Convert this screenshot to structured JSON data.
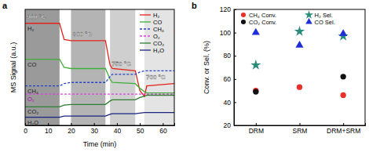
{
  "chart_data": [
    {
      "type": "line",
      "title": "a",
      "x_label": "Time (min)",
      "y_label": "MS Signal (a.u.)",
      "x": [
        0,
        15,
        17,
        20,
        35,
        37,
        38,
        48,
        50,
        52,
        53,
        65
      ],
      "series": [
        {
          "name": "H₂",
          "color": "#e3231b",
          "line_style": "solid",
          "values": [
            8.8,
            8.8,
            7.4,
            7.3,
            7.3,
            5.2,
            4.9,
            4.7,
            3.0,
            2.5,
            3.4,
            3.6
          ]
        },
        {
          "name": "CO",
          "color": "#3fae3a",
          "line_style": "solid",
          "values": [
            5.7,
            5.7,
            5.0,
            4.9,
            4.9,
            4.0,
            3.7,
            3.6,
            3.2,
            2.9,
            2.8,
            2.8
          ]
        },
        {
          "name": "CH₄",
          "color": "#2541c9",
          "line_style": "dashed",
          "values": [
            3.4,
            3.4,
            3.6,
            3.7,
            3.7,
            4.2,
            4.4,
            4.4,
            4.6,
            4.7,
            4.7,
            4.7
          ]
        },
        {
          "name": "O₂",
          "color": "#e040e0",
          "line_style": "dashed",
          "values": [
            2.7,
            2.7,
            2.7,
            2.7,
            2.7,
            2.7,
            2.7,
            2.7,
            2.7,
            2.7,
            2.7,
            2.7
          ]
        },
        {
          "name": "CO₂",
          "color": "#2e7d32",
          "line_style": "solid",
          "values": [
            1.6,
            1.6,
            1.75,
            1.8,
            1.8,
            2.1,
            2.2,
            2.2,
            2.4,
            2.5,
            2.6,
            2.6
          ]
        },
        {
          "name": "H₂O",
          "color": "#1a237e",
          "line_style": "solid",
          "values": [
            0.7,
            0.7,
            0.8,
            0.8,
            0.8,
            0.95,
            1.0,
            1.0,
            1.05,
            1.1,
            1.1,
            1.1
          ]
        }
      ],
      "regions": [
        {
          "start": 0,
          "end": 15,
          "label": "900 °C"
        },
        {
          "start": 20,
          "end": 35,
          "label": "800 °C"
        },
        {
          "start": 37,
          "end": 48,
          "label": "750 °C"
        },
        {
          "start": 52,
          "end": 65,
          "label": "700 °C"
        }
      ],
      "xlim": [
        0,
        65
      ],
      "xticks": [
        0,
        10,
        20,
        30,
        40,
        50,
        60
      ],
      "ylim": [
        0,
        10
      ],
      "tick_labels": "x",
      "legend": "upper right",
      "grid": false
    },
    {
      "type": "scatter",
      "title": "b",
      "y_label": "Conv. or Sel. (%)",
      "categories": [
        "DRM",
        "SRM",
        "DRM+SRM"
      ],
      "series": [
        {
          "name": "CH₄ Conv.",
          "color": "#e8302a",
          "marker": "circle",
          "values": [
            50,
            53,
            46
          ]
        },
        {
          "name": "CO₂ Conv.",
          "color": "#111111",
          "marker": "circle",
          "values": [
            49,
            null,
            62
          ]
        },
        {
          "name": "H₂ Sel.",
          "color": "#2a8c7a",
          "marker": "star",
          "values": [
            72,
            101,
            97
          ]
        },
        {
          "name": "CO Sel.",
          "color": "#1f2fd6",
          "marker": "triangle",
          "values": [
            100,
            89,
            99
          ]
        }
      ],
      "ylim": [
        20,
        120
      ],
      "yticks": [
        20,
        40,
        60,
        80,
        100,
        120
      ],
      "legend": "upper center",
      "grid": false
    }
  ]
}
